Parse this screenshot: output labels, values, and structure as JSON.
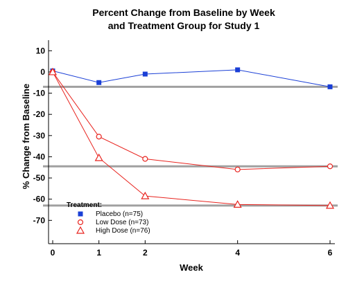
{
  "chart_data": {
    "type": "line",
    "title": [
      "Percent Change from Baseline by Week",
      "and Treatment Group for Study 1"
    ],
    "xlabel": "Week",
    "ylabel": "% Change from Baseline",
    "x": [
      0,
      1,
      2,
      4,
      6
    ],
    "x_tick_labels": [
      "0",
      "1",
      "2",
      "4",
      "6"
    ],
    "y_ticks": [
      10,
      0,
      -10,
      -20,
      -30,
      -40,
      -50,
      -60,
      -70
    ],
    "y_tick_labels": [
      "10",
      "0",
      "-10",
      "-20",
      "-30",
      "-40",
      "-50",
      "-60",
      "-70"
    ],
    "ylim": [
      -81,
      15
    ],
    "legend_title": "Treatment:",
    "legend_position": "bottom-left",
    "grid": false,
    "series": [
      {
        "name": "Placebo (n=75)",
        "marker": "filled-square",
        "color": "#1a3fd6",
        "values": [
          0.5,
          -5,
          -1,
          1,
          -7
        ]
      },
      {
        "name": "Low Dose (n=73)",
        "marker": "open-circle",
        "color": "#e8231e",
        "values": [
          0,
          -30.5,
          -41,
          -46,
          -44.5
        ]
      },
      {
        "name": "High Dose (n=76)",
        "marker": "open-triangle",
        "color": "#e8231e",
        "values": [
          0,
          -40.5,
          -58.5,
          -62.5,
          -63
        ]
      }
    ],
    "reference_lines": {
      "color": "#a0a0a0",
      "y": [
        -7,
        -44.5,
        -63
      ]
    }
  }
}
